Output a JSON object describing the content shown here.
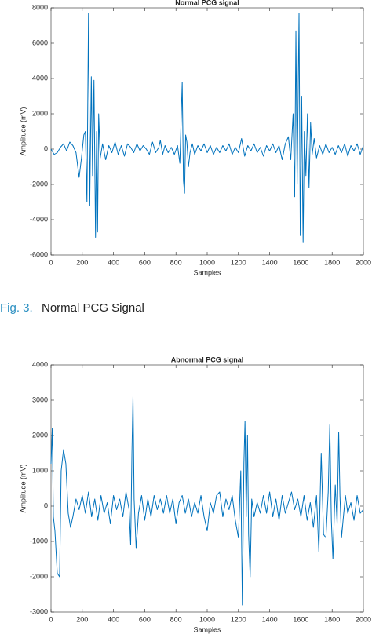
{
  "chart_data": [
    {
      "type": "line",
      "title": "Normal PCG signal",
      "xlabel": "Samples",
      "ylabel": "Amplitude (mV)",
      "color": "#0072bd",
      "xlim": [
        0,
        2000
      ],
      "xticks": [
        0,
        200,
        400,
        600,
        800,
        1000,
        1200,
        1400,
        1600,
        1800,
        2000
      ],
      "ylim": [
        -6000,
        8000
      ],
      "yticks": [
        -6000,
        -4000,
        -2000,
        0,
        2000,
        4000,
        6000,
        8000
      ],
      "x": [
        0,
        20,
        40,
        60,
        80,
        100,
        120,
        140,
        160,
        180,
        195,
        210,
        220,
        230,
        240,
        248,
        258,
        266,
        275,
        285,
        292,
        298,
        305,
        315,
        330,
        350,
        370,
        390,
        410,
        430,
        450,
        470,
        490,
        510,
        530,
        550,
        570,
        590,
        610,
        630,
        650,
        670,
        690,
        700,
        715,
        730,
        750,
        770,
        790,
        810,
        825,
        840,
        848,
        855,
        862,
        870,
        880,
        890,
        905,
        920,
        940,
        960,
        980,
        1000,
        1020,
        1040,
        1060,
        1080,
        1100,
        1120,
        1140,
        1160,
        1180,
        1200,
        1220,
        1240,
        1260,
        1280,
        1300,
        1320,
        1340,
        1360,
        1380,
        1400,
        1420,
        1440,
        1460,
        1480,
        1500,
        1520,
        1535,
        1550,
        1560,
        1568,
        1576,
        1588,
        1596,
        1605,
        1614,
        1622,
        1632,
        1642,
        1652,
        1662,
        1672,
        1685,
        1700,
        1720,
        1740,
        1760,
        1780,
        1800,
        1820,
        1840,
        1860,
        1880,
        1900,
        1920,
        1940,
        1960,
        1980,
        2000
      ],
      "values": [
        0,
        -300,
        -200,
        100,
        300,
        -100,
        400,
        200,
        -200,
        -1600,
        -500,
        800,
        1000,
        -3000,
        7700,
        -3200,
        4100,
        -1500,
        3900,
        -5000,
        1000,
        -4700,
        2000,
        -500,
        300,
        -600,
        200,
        -200,
        400,
        -300,
        200,
        -400,
        300,
        100,
        -200,
        300,
        -100,
        200,
        0,
        -300,
        400,
        -200,
        100,
        500,
        -300,
        200,
        -200,
        100,
        -300,
        200,
        -800,
        3800,
        -1800,
        -2500,
        800,
        400,
        -1000,
        -200,
        300,
        -300,
        200,
        -100,
        300,
        -200,
        200,
        -300,
        100,
        -200,
        200,
        -100,
        300,
        -300,
        100,
        -200,
        600,
        -400,
        200,
        -100,
        300,
        -200,
        100,
        -400,
        200,
        -100,
        300,
        -200,
        200,
        -600,
        300,
        700,
        -600,
        2000,
        -2700,
        6700,
        -2000,
        7700,
        -4900,
        3000,
        -5300,
        1000,
        -1500,
        2000,
        -2200,
        1500,
        -300,
        600,
        -500,
        200,
        -300,
        300,
        -200,
        100,
        -300,
        200,
        -200,
        300,
        -400,
        200,
        -100,
        300,
        -300,
        200
      ]
    },
    {
      "type": "line",
      "title": "Abnormal PCG signal",
      "xlabel": "Samples",
      "ylabel": "Amplitude (mV)",
      "color": "#0072bd",
      "xlim": [
        0,
        2000
      ],
      "xticks": [
        0,
        200,
        400,
        600,
        800,
        1000,
        1200,
        1400,
        1600,
        1800,
        2000
      ],
      "ylim": [
        -3000,
        4000
      ],
      "yticks": [
        -3000,
        -2000,
        -1000,
        0,
        1000,
        2000,
        3000,
        4000
      ],
      "x": [
        0,
        8,
        15,
        25,
        40,
        55,
        65,
        80,
        95,
        110,
        125,
        140,
        160,
        180,
        200,
        220,
        240,
        260,
        280,
        300,
        320,
        340,
        360,
        380,
        400,
        420,
        440,
        460,
        480,
        500,
        510,
        518,
        525,
        532,
        545,
        560,
        580,
        600,
        620,
        640,
        660,
        680,
        700,
        720,
        740,
        760,
        780,
        800,
        820,
        840,
        860,
        880,
        900,
        920,
        940,
        960,
        980,
        1000,
        1020,
        1040,
        1060,
        1080,
        1100,
        1120,
        1140,
        1160,
        1180,
        1200,
        1215,
        1225,
        1235,
        1242,
        1250,
        1258,
        1265,
        1275,
        1285,
        1300,
        1320,
        1340,
        1360,
        1380,
        1400,
        1420,
        1440,
        1460,
        1480,
        1500,
        1520,
        1540,
        1560,
        1580,
        1600,
        1620,
        1640,
        1660,
        1680,
        1700,
        1715,
        1730,
        1745,
        1760,
        1775,
        1785,
        1795,
        1805,
        1820,
        1832,
        1842,
        1850,
        1860,
        1870,
        1885,
        1900,
        1920,
        1940,
        1960,
        1980,
        2000
      ],
      "values": [
        1200,
        2200,
        -300,
        -700,
        -1900,
        -2000,
        1000,
        1600,
        1200,
        -200,
        -600,
        -300,
        200,
        -100,
        300,
        -200,
        400,
        -300,
        200,
        -400,
        300,
        -200,
        100,
        -500,
        300,
        -100,
        200,
        -300,
        400,
        -100,
        -1100,
        1500,
        3100,
        200,
        -1200,
        -200,
        300,
        -400,
        200,
        -300,
        300,
        -100,
        200,
        -200,
        300,
        -200,
        200,
        -500,
        100,
        300,
        -200,
        200,
        -300,
        100,
        -200,
        300,
        -300,
        -700,
        100,
        -200,
        300,
        400,
        -300,
        200,
        -100,
        300,
        -400,
        -900,
        1000,
        -2800,
        1200,
        2400,
        -300,
        2000,
        -800,
        -2000,
        200,
        -300,
        100,
        -200,
        300,
        -200,
        400,
        -300,
        200,
        -400,
        300,
        -200,
        100,
        400,
        -100,
        200,
        -300,
        300,
        -400,
        100,
        -600,
        300,
        -1300,
        1500,
        -800,
        -900,
        400,
        2300,
        -400,
        -1500,
        600,
        -500,
        2100,
        300,
        -900,
        -400,
        300,
        -200,
        100,
        -400,
        300,
        -200,
        -100
      ]
    }
  ],
  "caption": {
    "label": "Fig. 3.",
    "text": "Normal PCG Signal"
  }
}
